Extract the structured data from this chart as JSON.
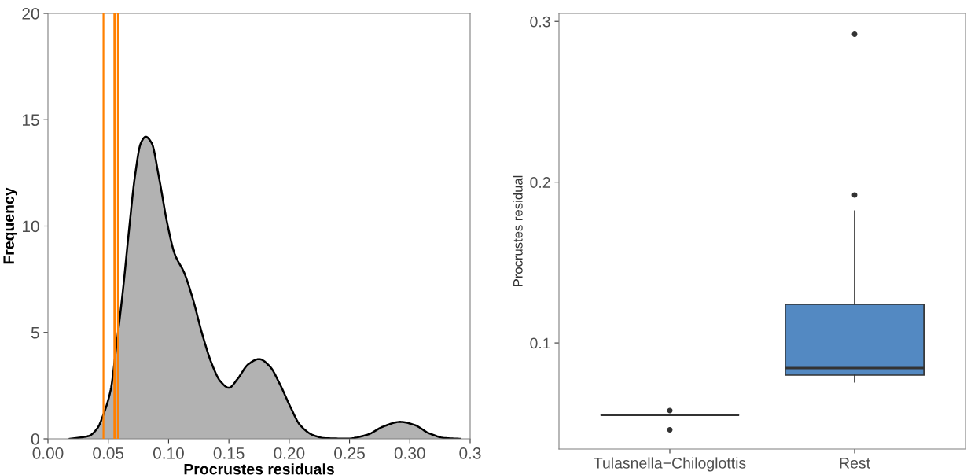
{
  "chart_data": [
    {
      "type": "area",
      "xlabel": "Procrustes residuals",
      "ylabel": "Frequency",
      "color": "#b2b2b2",
      "x": [
        0.018,
        0.034,
        0.041,
        0.046,
        0.052,
        0.057,
        0.062,
        0.067,
        0.072,
        0.077,
        0.081,
        0.086,
        0.092,
        0.099,
        0.105,
        0.113,
        0.12,
        0.128,
        0.136,
        0.143,
        0.15,
        0.157,
        0.166,
        0.175,
        0.184,
        0.192,
        0.201,
        0.209,
        0.22,
        0.23,
        0.248,
        0.265,
        0.278,
        0.292,
        0.304,
        0.316,
        0.329,
        0.342
      ],
      "values": [
        0,
        0.14,
        0.5,
        1.15,
        2.3,
        4.5,
        6.9,
        9.7,
        12.3,
        13.9,
        14.2,
        13.9,
        12.3,
        10.1,
        8.7,
        7.8,
        6.6,
        4.9,
        3.5,
        2.7,
        2.4,
        2.8,
        3.5,
        3.75,
        3.4,
        2.6,
        1.5,
        0.65,
        0.17,
        0.03,
        0.01,
        0.2,
        0.58,
        0.8,
        0.65,
        0.26,
        0.04,
        0
      ],
      "xlim": [
        0,
        0.35
      ],
      "xticks": [
        {
          "value": 0,
          "label": "0.00"
        },
        {
          "value": 0.05,
          "label": "0.05"
        },
        {
          "value": 0.1,
          "label": "0.10"
        },
        {
          "value": 0.15,
          "label": "0.15"
        },
        {
          "value": 0.2,
          "label": "0.20"
        },
        {
          "value": 0.25,
          "label": "0.25"
        },
        {
          "value": 0.3,
          "label": "0.30"
        },
        {
          "value": 0.35,
          "label": "0.3"
        }
      ],
      "ylim": [
        0,
        20
      ],
      "yticks": [
        0,
        5,
        10,
        15,
        20
      ],
      "ref_lines": [
        {
          "axis": "x",
          "value": 0.046,
          "color": "#ff8000"
        },
        {
          "axis": "x",
          "value": 0.055,
          "color": "#ff8000"
        },
        {
          "axis": "x",
          "value": 0.056,
          "color": "#ff8000"
        },
        {
          "axis": "x",
          "value": 0.058,
          "color": "#ff8000"
        }
      ],
      "grid": false
    },
    {
      "type": "box",
      "ylabel": "Procrustes residual",
      "categories": [
        "Tulasnella−Chiloglottis",
        "Rest"
      ],
      "colors": [
        "#333333",
        "#5389c2"
      ],
      "boxes": [
        {
          "low": 0.0553,
          "q1": 0.0553,
          "median": 0.0553,
          "q3": 0.0553,
          "high": 0.0553,
          "outliers": [
            0.058,
            0.046
          ]
        },
        {
          "low": 0.0758,
          "q1": 0.08,
          "median": 0.0844,
          "q3": 0.124,
          "high": 0.182,
          "outliers": [
            0.192,
            0.292
          ]
        }
      ],
      "ylim": [
        0.034,
        0.305
      ],
      "yticks": [
        0.1,
        0.2,
        0.3
      ],
      "grid": false
    }
  ]
}
